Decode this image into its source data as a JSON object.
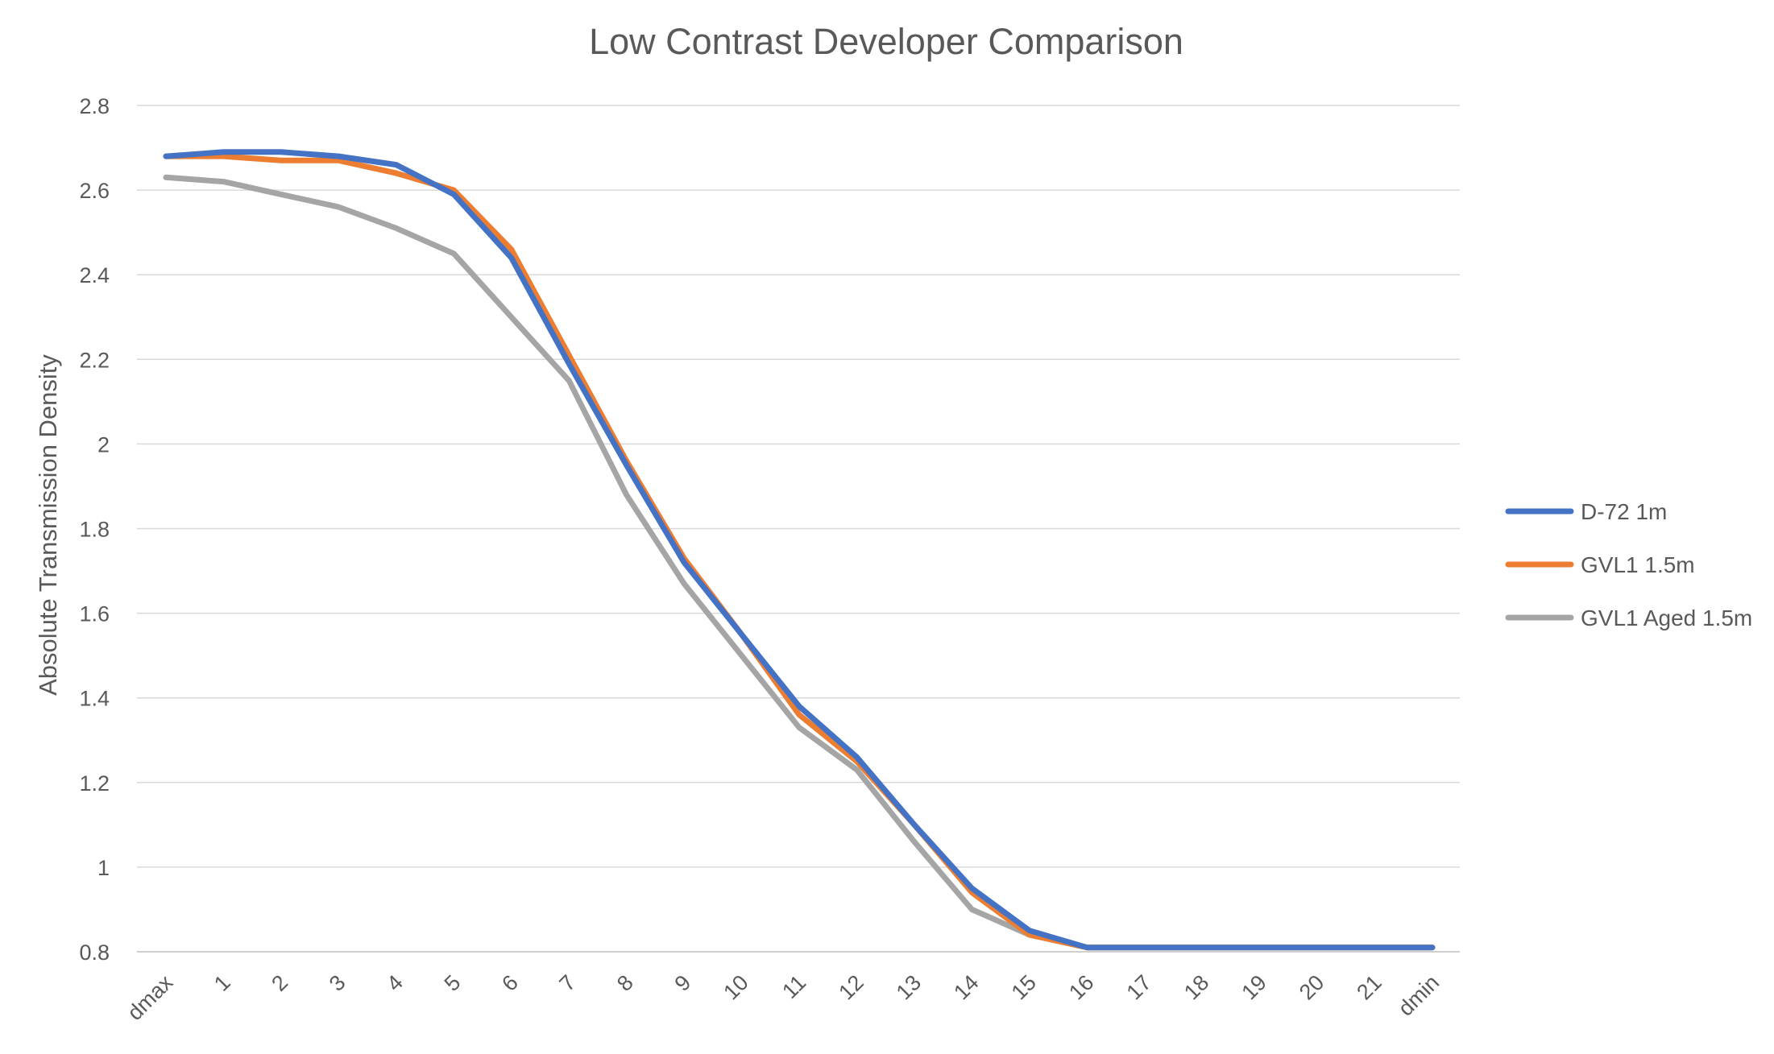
{
  "chart_data": {
    "type": "line",
    "title": "Low Contrast Developer Comparison",
    "xlabel": "",
    "ylabel": "Absolute Transmission Density",
    "categories": [
      "dmax",
      "1",
      "2",
      "3",
      "4",
      "5",
      "6",
      "7",
      "8",
      "9",
      "10",
      "11",
      "12",
      "13",
      "14",
      "15",
      "16",
      "17",
      "18",
      "19",
      "20",
      "21",
      "dmin"
    ],
    "ylim": [
      0.8,
      2.8
    ],
    "yticks": [
      "0.8",
      "1",
      "1.2",
      "1.4",
      "1.6",
      "1.8",
      "2",
      "2.2",
      "2.4",
      "2.6",
      "2.8"
    ],
    "grid": "horizontal",
    "legend_position": "right",
    "series": [
      {
        "name": "D-72 1m",
        "color": "#4472c4",
        "values": [
          2.68,
          2.69,
          2.69,
          2.68,
          2.66,
          2.59,
          2.44,
          2.19,
          1.95,
          1.72,
          1.55,
          1.38,
          1.26,
          1.1,
          0.95,
          0.85,
          0.81,
          0.81,
          0.81,
          0.81,
          0.81,
          0.81,
          0.81
        ]
      },
      {
        "name": "GVL1 1.5m",
        "color": "#ed7d31",
        "values": [
          2.68,
          2.68,
          2.67,
          2.67,
          2.64,
          2.6,
          2.46,
          2.21,
          1.96,
          1.73,
          1.55,
          1.36,
          1.25,
          1.1,
          0.94,
          0.84,
          0.81,
          0.81,
          0.81,
          0.81,
          0.81,
          0.81,
          0.81
        ]
      },
      {
        "name": "GVL1 Aged 1.5m",
        "color": "#a5a5a5",
        "values": [
          2.63,
          2.62,
          2.59,
          2.56,
          2.51,
          2.45,
          2.3,
          2.15,
          1.88,
          1.67,
          1.5,
          1.33,
          1.23,
          1.06,
          0.9,
          0.84,
          0.81,
          0.81,
          0.81,
          0.81,
          0.81,
          0.81,
          0.81
        ]
      }
    ]
  }
}
